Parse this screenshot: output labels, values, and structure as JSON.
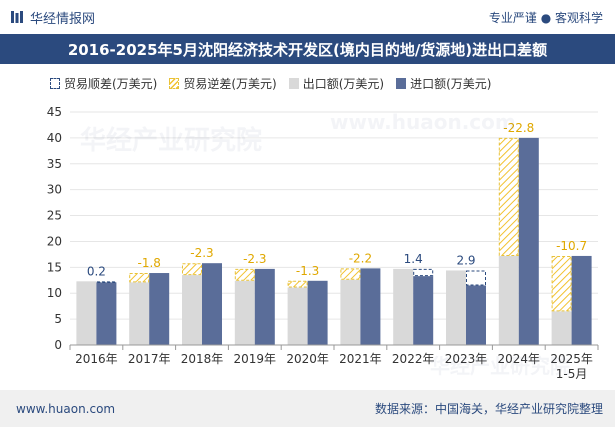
{
  "header": {
    "brand_name": "华经情报网",
    "tagline": "专业严谨 ● 客观科学"
  },
  "title": "2016-2025年5月沈阳经济技术开发区(境内目的地/货源地)进出口差额",
  "footer": {
    "website": "www.huaon.com",
    "source": "数据来源：中国海关，华经产业研究院整理"
  },
  "watermark": {
    "brand": "华经产业研究院",
    "site": "www.huaon.com"
  },
  "colors": {
    "brand": "#2b4a7e",
    "export": "#d9d9d9",
    "import": "#5a6d99",
    "deficit": "#f2c230",
    "surplus_outline": "#2b4a7e"
  },
  "chart_data": {
    "type": "bar",
    "ylim": [
      0,
      45
    ],
    "yticks": [
      0,
      5,
      10,
      15,
      20,
      25,
      30,
      35,
      40,
      45
    ],
    "categories": [
      "2016年",
      "2017年",
      "2018年",
      "2019年",
      "2020年",
      "2021年",
      "2022年",
      "2023年",
      "2024年",
      "2025年\n1-5月"
    ],
    "legend": [
      "贸易顺差(万美元)",
      "贸易逆差(万美元)",
      "出口额(万美元)",
      "进口额(万美元)"
    ],
    "legend_position": "top",
    "series": [
      {
        "name": "出口额(万美元)",
        "values": [
          12.3,
          12.1,
          13.5,
          12.4,
          11.1,
          12.6,
          14.7,
          14.4,
          17.2,
          6.5
        ]
      },
      {
        "name": "进口额(万美元)",
        "values": [
          12.1,
          13.9,
          15.8,
          14.7,
          12.4,
          14.8,
          13.3,
          11.5,
          40.0,
          17.2
        ]
      }
    ],
    "balance": [
      0.2,
      -1.8,
      -2.3,
      -2.3,
      -1.3,
      -2.2,
      1.4,
      2.9,
      -22.8,
      -10.7
    ],
    "balance_labels": [
      "0.2",
      "-1.8",
      "-2.3",
      "-2.3",
      "-1.3",
      "-2.2",
      "1.4",
      "2.9",
      "-22.8",
      "-10.7"
    ]
  }
}
